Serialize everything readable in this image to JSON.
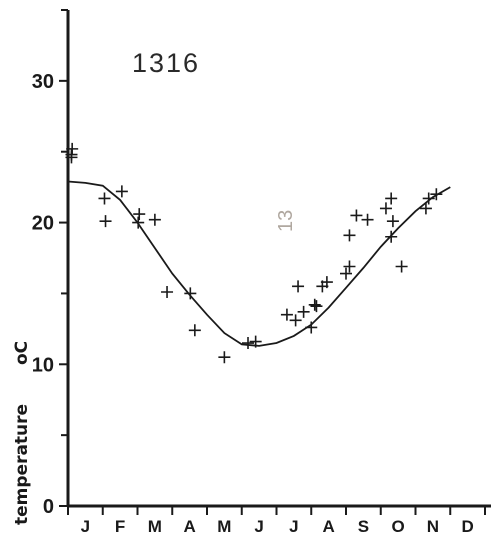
{
  "chart_data": {
    "type": "scatter",
    "title": "1316",
    "annotation": "13",
    "xlabel": "",
    "ylabel": "temperature",
    "ylabel_unit": "oC",
    "ylim": [
      0,
      35
    ],
    "yticks": [
      0,
      10,
      20,
      30
    ],
    "ytick_labels": [
      "0",
      "10",
      "20",
      "30"
    ],
    "xlim": [
      0,
      12
    ],
    "categories": [
      "J",
      "F",
      "M",
      "A",
      "M",
      "J",
      "J",
      "A",
      "S",
      "O",
      "N",
      "D"
    ],
    "grid": false,
    "series": [
      {
        "kind": "points",
        "x": [
          0.1,
          0.12,
          0.1,
          1.05,
          1.08,
          1.55,
          2.02,
          2.05,
          2.5,
          2.85,
          3.52,
          3.65,
          4.5,
          5.18,
          5.4,
          6.3,
          6.55,
          6.62,
          6.78,
          7.0,
          7.15,
          7.1,
          7.32,
          7.45,
          8.0,
          8.1,
          8.1,
          8.3,
          8.62,
          9.15,
          9.3,
          9.35,
          9.3,
          9.6,
          10.3,
          10.38,
          10.6
        ],
        "y": [
          24.6,
          25.2,
          24.8,
          21.7,
          20.1,
          22.2,
          20.0,
          20.6,
          20.2,
          15.1,
          15.0,
          12.4,
          10.5,
          11.5,
          11.6,
          13.5,
          13.1,
          15.5,
          13.7,
          12.6,
          14.1,
          14.2,
          15.5,
          15.8,
          16.4,
          16.9,
          19.1,
          20.5,
          20.2,
          21.0,
          21.7,
          20.1,
          19.0,
          16.9,
          21.0,
          21.7,
          22.0
        ]
      },
      {
        "kind": "line",
        "x": [
          0.0,
          0.5,
          1.0,
          1.5,
          2.0,
          2.5,
          3.0,
          3.5,
          4.0,
          4.5,
          5.0,
          5.5,
          6.0,
          6.5,
          7.0,
          7.5,
          8.0,
          8.5,
          9.0,
          9.5,
          10.0,
          10.5,
          11.0
        ],
        "y": [
          22.9,
          22.8,
          22.6,
          21.6,
          20.0,
          18.2,
          16.4,
          14.9,
          13.5,
          12.2,
          11.4,
          11.3,
          11.5,
          12.0,
          12.8,
          14.0,
          15.4,
          16.8,
          18.3,
          19.6,
          20.8,
          21.8,
          22.5
        ]
      }
    ]
  }
}
